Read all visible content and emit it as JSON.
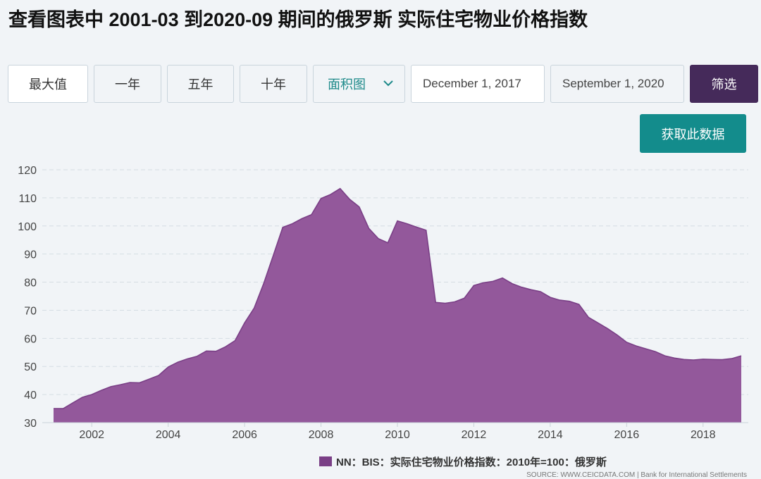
{
  "title": "查看图表中 2001-03 到2020-09 期间的俄罗斯 实际住宅物业价格指数",
  "controls": {
    "range_buttons": [
      "最大值",
      "一年",
      "五年",
      "十年"
    ],
    "chart_type": "面积图",
    "start_date": "December 1, 2017",
    "end_date": "September 1, 2020",
    "filter_label": "筛选",
    "get_data_label": "获取此数据"
  },
  "chart_data": {
    "type": "area",
    "ylim": [
      30,
      120
    ],
    "yticks": [
      30,
      40,
      50,
      60,
      70,
      80,
      90,
      100,
      110,
      120
    ],
    "xticks": [
      2002,
      2004,
      2006,
      2008,
      2010,
      2012,
      2014,
      2016,
      2018
    ],
    "xlim": [
      2001.0,
      2019.4
    ],
    "grid": true,
    "fill_color": "#93589b",
    "line_color": "#7a3f86",
    "series": [
      {
        "name": "NN：BIS：实际住宅物业价格指数：2010年=100：俄罗斯",
        "points": [
          [
            2001.0,
            35.0
          ],
          [
            2001.25,
            35.0
          ],
          [
            2001.5,
            37.0
          ],
          [
            2001.75,
            39.0
          ],
          [
            2002.0,
            40.0
          ],
          [
            2002.25,
            41.5
          ],
          [
            2002.5,
            42.8
          ],
          [
            2002.75,
            43.5
          ],
          [
            2003.0,
            44.3
          ],
          [
            2003.25,
            44.2
          ],
          [
            2003.5,
            45.5
          ],
          [
            2003.75,
            46.8
          ],
          [
            2004.0,
            49.8
          ],
          [
            2004.25,
            51.5
          ],
          [
            2004.5,
            52.7
          ],
          [
            2004.75,
            53.6
          ],
          [
            2005.0,
            55.5
          ],
          [
            2005.25,
            55.4
          ],
          [
            2005.5,
            57.0
          ],
          [
            2005.75,
            59.2
          ],
          [
            2006.0,
            65.5
          ],
          [
            2006.25,
            70.8
          ],
          [
            2006.5,
            79.5
          ],
          [
            2006.75,
            89.5
          ],
          [
            2007.0,
            99.5
          ],
          [
            2007.25,
            100.8
          ],
          [
            2007.5,
            102.6
          ],
          [
            2007.75,
            104.0
          ],
          [
            2008.0,
            109.8
          ],
          [
            2008.25,
            111.2
          ],
          [
            2008.5,
            113.3
          ],
          [
            2008.75,
            109.5
          ],
          [
            2009.0,
            106.8
          ],
          [
            2009.25,
            99.2
          ],
          [
            2009.5,
            95.5
          ],
          [
            2009.75,
            94.0
          ],
          [
            2010.0,
            101.8
          ],
          [
            2010.25,
            100.8
          ],
          [
            2010.5,
            99.6
          ],
          [
            2010.75,
            98.5
          ],
          [
            2011.0,
            72.8
          ],
          [
            2011.25,
            72.5
          ],
          [
            2011.5,
            73.0
          ],
          [
            2011.75,
            74.3
          ],
          [
            2012.0,
            78.8
          ],
          [
            2012.25,
            79.8
          ],
          [
            2012.5,
            80.3
          ],
          [
            2012.75,
            81.5
          ],
          [
            2013.0,
            79.5
          ],
          [
            2013.25,
            78.2
          ],
          [
            2013.5,
            77.3
          ],
          [
            2013.75,
            76.6
          ],
          [
            2014.0,
            74.6
          ],
          [
            2014.25,
            73.6
          ],
          [
            2014.5,
            73.2
          ],
          [
            2014.75,
            72.1
          ],
          [
            2015.0,
            67.5
          ],
          [
            2015.25,
            65.5
          ],
          [
            2015.5,
            63.5
          ],
          [
            2015.75,
            61.2
          ],
          [
            2016.0,
            58.6
          ],
          [
            2016.25,
            57.3
          ],
          [
            2016.5,
            56.3
          ],
          [
            2016.75,
            55.3
          ],
          [
            2017.0,
            53.8
          ],
          [
            2017.25,
            53.0
          ],
          [
            2017.5,
            52.5
          ],
          [
            2017.75,
            52.3
          ],
          [
            2018.0,
            52.6
          ],
          [
            2018.25,
            52.5
          ],
          [
            2018.5,
            52.4
          ],
          [
            2018.75,
            52.8
          ],
          [
            2019.0,
            53.8
          ]
        ]
      }
    ]
  },
  "legend": {
    "label": "NN：BIS：实际住宅物业价格指数：2010年=100：俄罗斯",
    "swatch_color": "#7a3f86"
  },
  "source": "SOURCE: WWW.CEICDATA.COM | Bank for International Settlements"
}
